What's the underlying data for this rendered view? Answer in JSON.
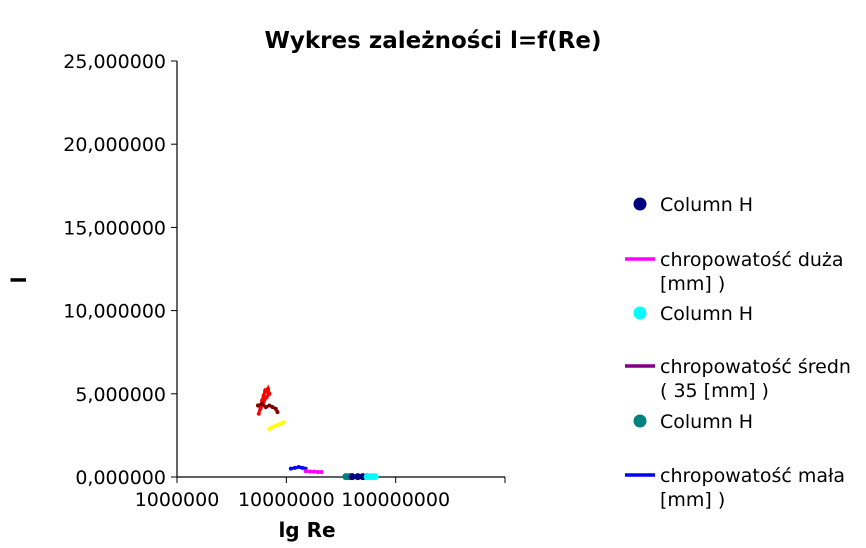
{
  "chart_data": {
    "type": "scatter",
    "title": "Wykres zależności l=f(Re)",
    "xlabel": "lg Re",
    "ylabel": "l",
    "x_scale": "log",
    "xlim": [
      1000000,
      1000000000
    ],
    "ylim": [
      0,
      25
    ],
    "x_ticks": [
      "1000000",
      "10000000",
      "100000000"
    ],
    "y_ticks": [
      "0,000000",
      "5,000000",
      "10,000000",
      "15,000000",
      "20,000000",
      "25,000000"
    ],
    "grid": false,
    "legend_position": "right",
    "legend": [
      {
        "label": "Column H",
        "kind": "marker",
        "color": "#000080"
      },
      {
        "label": "chropowatość duża",
        "label2": "[mm] )",
        "kind": "line",
        "color": "#ff00ff"
      },
      {
        "label": "Column H",
        "kind": "marker",
        "color": "#00ffff"
      },
      {
        "label": "chropowatość średn",
        "label2": "( 35 [mm] )",
        "kind": "line",
        "color": "#800080"
      },
      {
        "label": "Column H",
        "kind": "marker",
        "color": "#008080"
      },
      {
        "label": "chropowatość mała",
        "label2": "[mm] )",
        "kind": "line",
        "color": "#0000ff"
      }
    ],
    "series": [
      {
        "color": "#ff0000",
        "style": "line-markers",
        "x": [
          5600000,
          5800000,
          6000000,
          6200000,
          6400000,
          6600000,
          6800000,
          7000000,
          6600000,
          6200000,
          6000000,
          5800000
        ],
        "y": [
          3.8,
          4.2,
          4.6,
          4.9,
          5.2,
          5.1,
          5.3,
          5.0,
          4.8,
          4.5,
          4.3,
          4.1
        ]
      },
      {
        "color": "#800000",
        "style": "line-markers",
        "x": [
          5500000,
          6000000,
          6500000,
          7000000,
          7500000,
          8000000,
          8300000
        ],
        "y": [
          4.3,
          4.4,
          4.2,
          4.3,
          4.2,
          4.1,
          3.9
        ]
      },
      {
        "color": "#ffff00",
        "style": "line-markers",
        "x": [
          7000000,
          7500000,
          8000000,
          8500000,
          9000000,
          9500000
        ],
        "y": [
          2.9,
          3.0,
          3.1,
          3.15,
          3.2,
          3.3
        ]
      },
      {
        "color": "#0000ff",
        "style": "line-markers",
        "x": [
          11000000,
          12000000,
          13000000,
          14000000,
          15000000
        ],
        "y": [
          0.5,
          0.55,
          0.6,
          0.55,
          0.5
        ]
      },
      {
        "color": "#ff00ff",
        "style": "line-markers",
        "x": [
          15000000,
          16500000,
          18000000,
          19500000,
          21000000
        ],
        "y": [
          0.35,
          0.33,
          0.32,
          0.3,
          0.3
        ]
      },
      {
        "color": "#008080",
        "style": "markers",
        "x": [
          35000000,
          37000000,
          39000000
        ],
        "y": [
          0.02,
          0.02,
          0.02
        ]
      },
      {
        "color": "#000080",
        "style": "markers",
        "x": [
          40000000,
          45000000,
          50000000,
          55000000
        ],
        "y": [
          0.02,
          0.02,
          0.02,
          0.02
        ]
      },
      {
        "color": "#00ffff",
        "style": "markers",
        "x": [
          55000000,
          60000000,
          65000000
        ],
        "y": [
          0.02,
          0.02,
          0.02
        ]
      }
    ]
  }
}
